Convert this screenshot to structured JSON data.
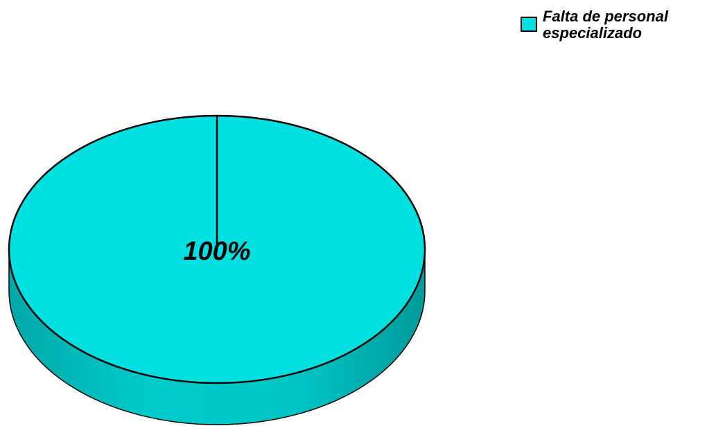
{
  "chart_data": {
    "type": "pie",
    "categories": [
      "Falta de personal especializado"
    ],
    "values": [
      100
    ],
    "value_labels": [
      "100%"
    ],
    "colors": [
      "#00e0e0"
    ],
    "legend": "top-right"
  }
}
